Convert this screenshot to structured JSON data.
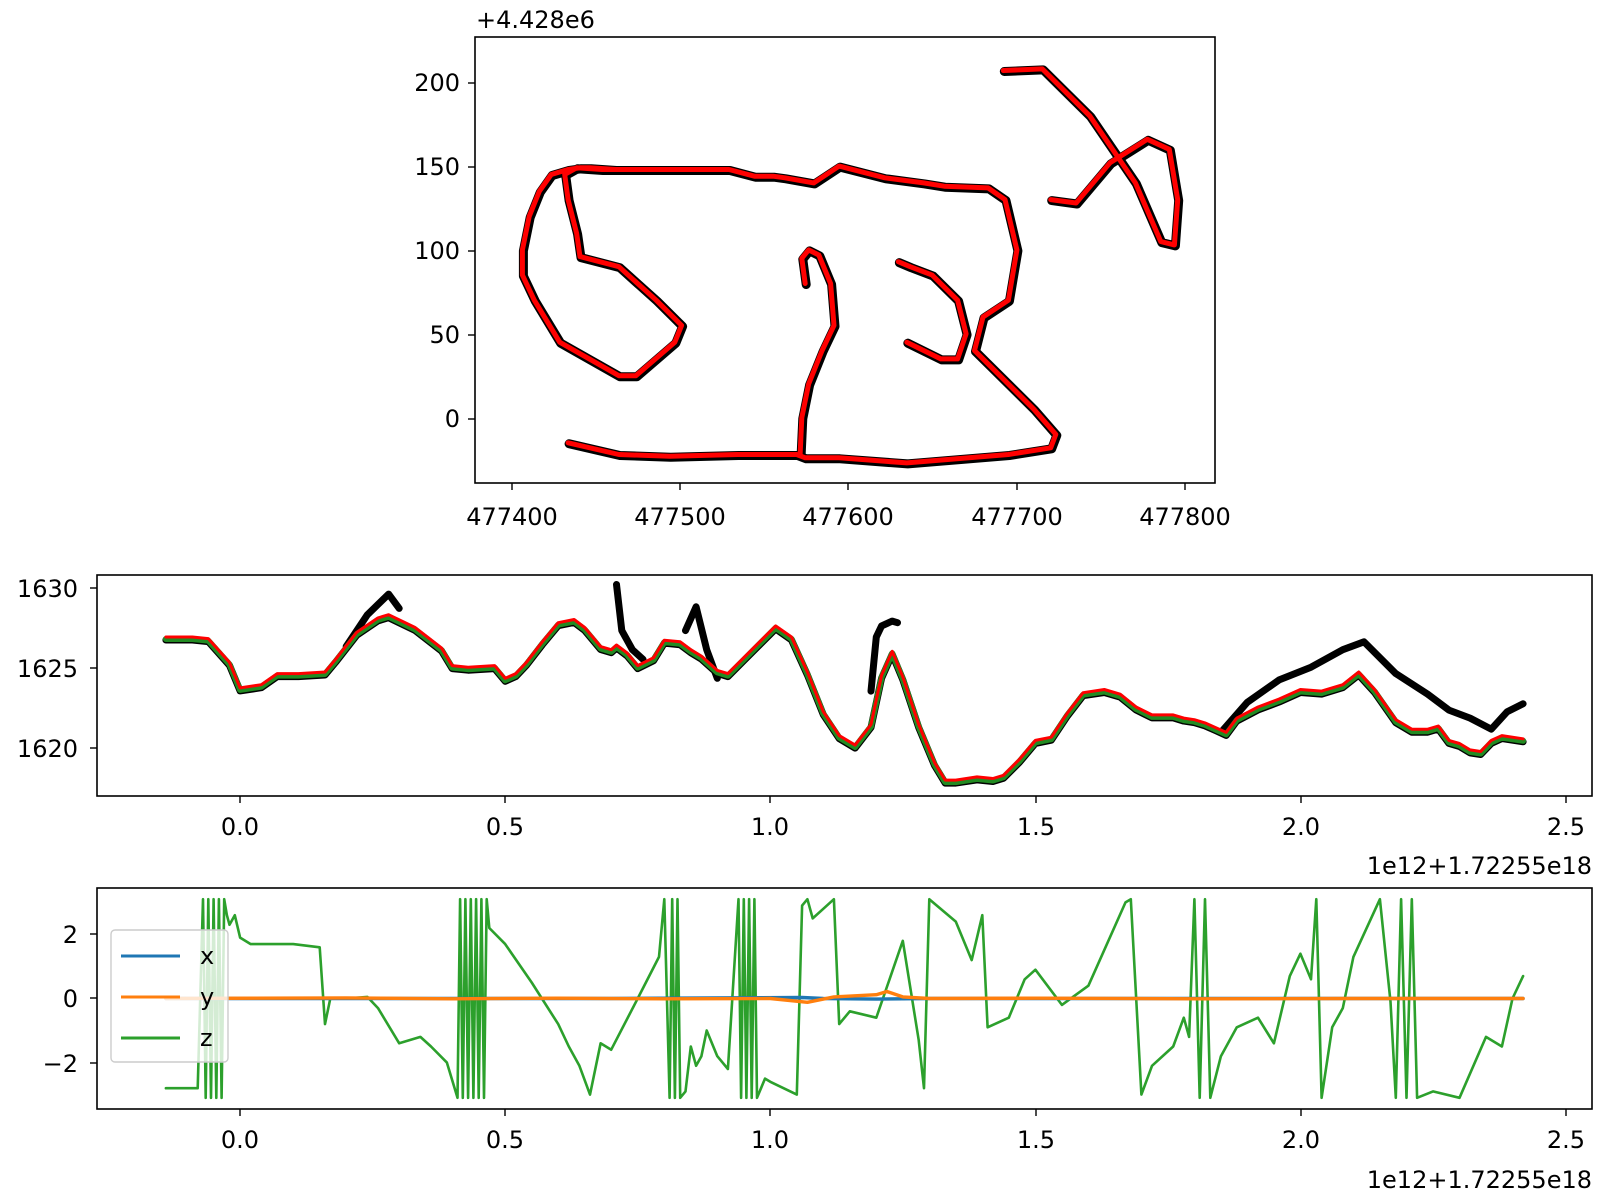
{
  "chart_data": [
    {
      "type": "line",
      "offset_label": "+4.428e6",
      "xlim": [
        477385,
        477822
      ],
      "ylim": [
        -39,
        227
      ],
      "xticks": [
        "477400",
        "477500",
        "477600",
        "477700",
        "477800"
      ],
      "yticks": [
        "0",
        "50",
        "100",
        "150",
        "200"
      ],
      "grid": false,
      "colors": {
        "reference": "#000000",
        "estimate": "#ff0000"
      },
      "series": [
        {
          "x": [
            477440,
            477470,
            477500,
            477540,
            477575,
            477580,
            477600,
            477640,
            477700,
            477725,
            477728,
            477715,
            477690,
            477680,
            477685,
            477700,
            477705,
            477698,
            477688,
            477662,
            477650,
            477627,
            477600,
            477585,
            477568,
            477561,
            477550,
            477535,
            477468,
            477453,
            477447,
            477440,
            477430,
            477423,
            477417,
            477413,
            477413,
            477420,
            477435,
            477470,
            477480,
            477503,
            477507,
            477492,
            477470,
            477447,
            477445,
            477440,
            477438,
            477445,
            477460,
            477480
          ],
          "y": [
            -15,
            -22,
            -23,
            -22,
            -22,
            -24,
            -24,
            -27,
            -22,
            -18,
            -10,
            5,
            30,
            40,
            60,
            70,
            100,
            130,
            137,
            138,
            140,
            143,
            150,
            140,
            143,
            144,
            144,
            148,
            148,
            149,
            149,
            148,
            145,
            135,
            120,
            100,
            85,
            70,
            45,
            25,
            25,
            45,
            55,
            70,
            90,
            96,
            110,
            130,
            145,
            149,
            148,
            148
          ]
        },
        {
          "x": [
            477577,
            477578,
            477582,
            477590,
            477597,
            477595,
            477588,
            477582,
            477578,
            477580
          ],
          "y": [
            -22,
            0,
            20,
            40,
            55,
            80,
            97,
            100,
            95,
            80
          ]
        },
        {
          "x": [
            477725,
            477740,
            477760,
            477782,
            477795,
            477800,
            477798,
            477790,
            477775,
            477748,
            477720,
            477697
          ],
          "y": [
            130,
            128,
            152,
            166,
            160,
            130,
            103,
            105,
            140,
            180,
            208,
            207
          ]
        },
        {
          "x": [
            477635,
            477642,
            477655,
            477670,
            477675,
            477670,
            477660,
            477640
          ],
          "y": [
            93,
            90,
            85,
            70,
            50,
            35,
            35,
            45
          ]
        }
      ]
    },
    {
      "type": "line",
      "offset_label": "1e12+1.72255e18",
      "xlim": [
        -0.27,
        2.55
      ],
      "ylim": [
        1616.6,
        1630.5
      ],
      "xticks": [
        "0.0",
        "0.5",
        "1.0",
        "1.5",
        "2.0",
        "2.5"
      ],
      "yticks": [
        "1620",
        "1625",
        "1630"
      ],
      "grid": false,
      "colors": {
        "reference": "#000000",
        "smooth": "#228b22",
        "estimate": "#ff0000"
      },
      "series": [
        {
          "x": [
            -0.14,
            -0.09,
            -0.06,
            -0.02,
            0.0,
            0.04,
            0.07,
            0.11,
            0.16,
            0.18,
            0.22,
            0.26,
            0.28,
            0.33,
            0.38,
            0.4,
            0.43,
            0.48,
            0.5,
            0.52,
            0.54,
            0.57,
            0.6,
            0.63,
            0.65,
            0.68,
            0.7,
            0.71,
            0.73,
            0.75,
            0.78,
            0.8,
            0.83,
            0.85,
            0.87,
            0.9,
            0.92,
            0.95,
            0.98,
            1.01,
            1.04,
            1.07,
            1.1,
            1.13,
            1.16,
            1.19,
            1.21,
            1.23,
            1.25,
            1.28,
            1.31,
            1.33,
            1.35,
            1.39,
            1.42,
            1.44,
            1.47,
            1.5,
            1.53,
            1.56,
            1.59,
            1.63,
            1.66,
            1.69,
            1.72,
            1.74,
            1.76,
            1.78,
            1.8,
            1.82,
            1.84,
            1.86,
            1.88,
            1.92,
            1.96,
            2.0,
            2.04,
            2.08,
            2.11,
            2.14,
            2.18,
            2.21,
            2.24,
            2.26,
            2.28,
            2.3,
            2.32,
            2.34,
            2.36,
            2.38,
            2.42
          ],
          "y": [
            1626.6,
            1626.6,
            1626.5,
            1625.0,
            1623.4,
            1623.6,
            1624.3,
            1624.3,
            1624.4,
            1625.2,
            1626.9,
            1627.8,
            1628.0,
            1627.2,
            1625.9,
            1624.8,
            1624.7,
            1624.8,
            1624.0,
            1624.3,
            1625.0,
            1626.3,
            1627.5,
            1627.7,
            1627.2,
            1626.0,
            1625.8,
            1626.1,
            1625.6,
            1624.8,
            1625.3,
            1626.4,
            1626.3,
            1625.8,
            1625.4,
            1624.5,
            1624.3,
            1625.3,
            1626.3,
            1627.3,
            1626.6,
            1624.4,
            1621.9,
            1620.4,
            1619.8,
            1621.1,
            1624.2,
            1625.7,
            1624.1,
            1621.1,
            1618.7,
            1617.6,
            1617.6,
            1617.8,
            1617.7,
            1617.9,
            1618.9,
            1620.1,
            1620.3,
            1621.8,
            1623.1,
            1623.3,
            1623.0,
            1622.2,
            1621.7,
            1621.7,
            1621.7,
            1621.5,
            1621.4,
            1621.2,
            1620.9,
            1620.6,
            1621.5,
            1622.2,
            1622.7,
            1623.3,
            1623.2,
            1623.6,
            1624.4,
            1623.3,
            1621.4,
            1620.8,
            1620.8,
            1621.0,
            1620.1,
            1619.9,
            1619.5,
            1619.4,
            1620.1,
            1620.4,
            1620.2
          ]
        },
        {
          "x": [
            0.2,
            0.24,
            0.28,
            0.3
          ],
          "y": [
            1626.0,
            1628.0,
            1629.3,
            1628.4
          ]
        },
        {
          "x": [
            0.71,
            0.72,
            0.74,
            0.76
          ],
          "y": [
            1629.9,
            1627.0,
            1625.8,
            1625.2
          ]
        },
        {
          "x": [
            0.84,
            0.86,
            0.88,
            0.9
          ],
          "y": [
            1627.0,
            1628.5,
            1625.8,
            1624.0
          ]
        },
        {
          "x": [
            1.19,
            1.2,
            1.21,
            1.23,
            1.24
          ],
          "y": [
            1623.2,
            1626.6,
            1627.3,
            1627.6,
            1627.5
          ]
        },
        {
          "x": [
            1.85,
            1.9,
            1.96,
            2.02,
            2.08,
            2.12,
            2.18,
            2.24,
            2.28,
            2.32,
            2.36,
            2.39,
            2.42
          ],
          "y": [
            1620.6,
            1622.5,
            1623.9,
            1624.7,
            1625.8,
            1626.3,
            1624.3,
            1623.0,
            1622.0,
            1621.5,
            1620.8,
            1621.9,
            1622.4
          ]
        }
      ]
    },
    {
      "type": "line",
      "offset_label": "1e12+1.72255e18",
      "xlim": [
        -0.27,
        2.55
      ],
      "ylim": [
        -3.45,
        3.45
      ],
      "xticks": [
        "0.0",
        "0.5",
        "1.0",
        "1.5",
        "2.0",
        "2.5"
      ],
      "yticks": [
        "−2",
        "0",
        "2"
      ],
      "legend": {
        "position": "upper left",
        "entries": [
          "x",
          "y",
          "z"
        ]
      },
      "grid": false,
      "series": [
        {
          "name": "x",
          "color": "#1f77b4",
          "x": [
            -0.14,
            0.3,
            0.7,
            1.06,
            1.1,
            1.2,
            1.3,
            1.6,
            2.0,
            2.42
          ],
          "y": [
            0.0,
            0.0,
            0.0,
            0.03,
            0.0,
            -0.02,
            0.0,
            0.0,
            0.0,
            0.0
          ]
        },
        {
          "name": "y",
          "color": "#ff7f0e",
          "x": [
            -0.14,
            0.2,
            0.4,
            0.6,
            0.8,
            1.0,
            1.07,
            1.12,
            1.2,
            1.22,
            1.25,
            1.3,
            1.5,
            1.8,
            2.1,
            2.42
          ],
          "y": [
            0.0,
            0.02,
            -0.01,
            0.01,
            -0.01,
            0.0,
            -0.12,
            0.05,
            0.12,
            0.22,
            0.05,
            0.0,
            0.01,
            -0.01,
            0.0,
            0.0
          ]
        },
        {
          "name": "z",
          "color": "#2ca02c",
          "x": [
            -0.14,
            -0.08,
            -0.07,
            -0.065,
            -0.06,
            -0.055,
            -0.05,
            -0.045,
            -0.04,
            -0.035,
            -0.03,
            -0.025,
            -0.02,
            -0.01,
            0.0,
            0.02,
            0.05,
            0.1,
            0.15,
            0.16,
            0.17,
            0.2,
            0.24,
            0.26,
            0.3,
            0.34,
            0.36,
            0.39,
            0.41,
            0.415,
            0.42,
            0.425,
            0.43,
            0.435,
            0.44,
            0.445,
            0.45,
            0.455,
            0.46,
            0.465,
            0.47,
            0.5,
            0.55,
            0.6,
            0.62,
            0.64,
            0.66,
            0.68,
            0.7,
            0.75,
            0.79,
            0.8,
            0.81,
            0.815,
            0.82,
            0.825,
            0.83,
            0.84,
            0.85,
            0.86,
            0.87,
            0.88,
            0.9,
            0.92,
            0.94,
            0.945,
            0.95,
            0.955,
            0.96,
            0.965,
            0.97,
            0.975,
            0.98,
            0.99,
            1.0,
            1.05,
            1.06,
            1.07,
            1.08,
            1.1,
            1.12,
            1.13,
            1.15,
            1.2,
            1.25,
            1.28,
            1.29,
            1.3,
            1.35,
            1.38,
            1.4,
            1.41,
            1.45,
            1.48,
            1.5,
            1.55,
            1.6,
            1.67,
            1.68,
            1.7,
            1.72,
            1.76,
            1.78,
            1.79,
            1.8,
            1.81,
            1.82,
            1.83,
            1.85,
            1.88,
            1.92,
            1.95,
            1.98,
            2.0,
            2.02,
            2.03,
            2.04,
            2.06,
            2.08,
            2.1,
            2.15,
            2.17,
            2.18,
            2.19,
            2.2,
            2.21,
            2.22,
            2.25,
            2.3,
            2.35,
            2.38,
            2.4,
            2.42
          ],
          "y": [
            -2.8,
            -2.8,
            3.1,
            -3.1,
            3.1,
            -3.1,
            3.1,
            -3.1,
            3.1,
            -3.1,
            3.1,
            2.6,
            2.3,
            2.6,
            1.9,
            1.7,
            1.7,
            1.7,
            1.6,
            -0.8,
            0.0,
            0.0,
            0.05,
            -0.3,
            -1.4,
            -1.2,
            -1.5,
            -2.0,
            -3.1,
            3.1,
            -3.1,
            3.1,
            -3.1,
            3.1,
            -3.1,
            3.1,
            -3.1,
            3.1,
            -3.1,
            3.1,
            2.2,
            1.7,
            0.5,
            -0.8,
            -1.5,
            -2.1,
            -3.0,
            -1.4,
            -1.6,
            0.0,
            1.3,
            3.1,
            -3.1,
            3.1,
            -3.1,
            3.1,
            -3.1,
            -2.9,
            -1.5,
            -2.1,
            -1.8,
            -1.0,
            -1.8,
            -2.2,
            3.1,
            -3.1,
            3.1,
            -3.1,
            3.1,
            -3.1,
            3.1,
            -3.1,
            -2.9,
            -2.5,
            -2.6,
            -3.0,
            2.9,
            3.1,
            2.5,
            2.8,
            3.1,
            -0.8,
            -0.4,
            -0.6,
            1.8,
            -1.3,
            -2.8,
            3.1,
            2.4,
            1.2,
            2.6,
            -0.9,
            -0.6,
            0.6,
            0.9,
            -0.2,
            0.4,
            3.0,
            3.1,
            -3.0,
            -2.1,
            -1.5,
            -0.6,
            -1.2,
            3.1,
            -3.1,
            3.1,
            -3.1,
            -1.8,
            -0.9,
            -0.6,
            -1.4,
            0.7,
            1.4,
            0.6,
            3.1,
            -3.1,
            -0.9,
            -0.3,
            1.3,
            3.1,
            -0.1,
            -3.1,
            3.1,
            -3.1,
            3.1,
            -3.1,
            -2.9,
            -3.1,
            -1.2,
            -1.5,
            0.0,
            0.7
          ]
        }
      ]
    }
  ]
}
